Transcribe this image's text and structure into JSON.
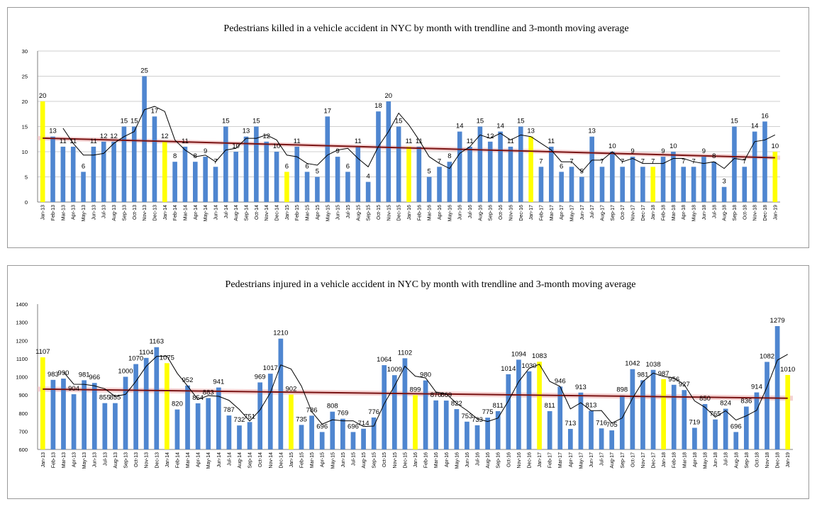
{
  "colors": {
    "bar": "#4f86d0",
    "highlight": "#ffff00",
    "moving_average": "#000000",
    "trendline": "#7a1414",
    "trend_band": "#f2c4c4",
    "grid": "#bfbfbf"
  },
  "chart_data": [
    {
      "type": "bar",
      "title": "Pedestrians killed in a vehicle accident  in NYC  by month with trendline and 3-month moving average",
      "xlabel": "",
      "ylabel": "",
      "ylim": [
        0,
        30
      ],
      "yticks": [
        0,
        5,
        10,
        15,
        20,
        25,
        30
      ],
      "grid": true,
      "legend": "none",
      "categories": [
        "Jan-13",
        "Feb-13",
        "Mar-13",
        "Apr-13",
        "May-13",
        "Jun-13",
        "Jul-13",
        "Aug-13",
        "Sep-13",
        "Oct-13",
        "Nov-13",
        "Dec-13",
        "Jan-14",
        "Feb-14",
        "Mar-14",
        "Apr-14",
        "May-14",
        "Jun-14",
        "Jul-14",
        "Aug-14",
        "Sep-14",
        "Oct-14",
        "Nov-14",
        "Dec-14",
        "Jan-15",
        "Feb-15",
        "Mar-15",
        "Apr-15",
        "May-15",
        "Jun-15",
        "Jul-15",
        "Aug-15",
        "Sep-15",
        "Oct-15",
        "Nov-15",
        "Dec-15",
        "Jan-16",
        "Feb-16",
        "Mar-16",
        "Apr-16",
        "May-16",
        "Jun-16",
        "Jul-16",
        "Aug-16",
        "Sep-16",
        "Oct-16",
        "Nov-16",
        "Dec-16",
        "Jan-17",
        "Feb-17",
        "Mar-17",
        "Apr-17",
        "May-17",
        "Jun-17",
        "Jul-17",
        "Aug-17",
        "Sep-17",
        "Oct-17",
        "Nov-17",
        "Dec-17",
        "Jan-18",
        "Feb-18",
        "Mar-18",
        "Apr-18",
        "May-18",
        "Jun-18",
        "Jul-18",
        "Aug-18",
        "Sep-18",
        "Oct-18",
        "Nov-18",
        "Dec-18",
        "Jan-19"
      ],
      "values": [
        20,
        13,
        11,
        11,
        6,
        11,
        12,
        12,
        15,
        15,
        25,
        17,
        12,
        8,
        11,
        8,
        9,
        7,
        15,
        10,
        13,
        15,
        12,
        10,
        6,
        11,
        6,
        5,
        17,
        9,
        6,
        11,
        4,
        18,
        20,
        15,
        11,
        11,
        5,
        7,
        8,
        14,
        11,
        15,
        12,
        14,
        11,
        15,
        13,
        7,
        11,
        6,
        7,
        5,
        13,
        7,
        10,
        7,
        9,
        7,
        7,
        9,
        10,
        7,
        7,
        9,
        8,
        3,
        15,
        7,
        14,
        16,
        10
      ],
      "labels": [
        "20",
        "13",
        "11",
        "11",
        "6",
        "11",
        "12",
        "12",
        "15",
        "15",
        "25",
        "17",
        "12",
        "8",
        "11",
        "8",
        "9",
        "7",
        "15",
        "10",
        "13",
        "15",
        "12",
        "10",
        "6",
        "11",
        "6",
        "5",
        "17",
        "9",
        "6",
        "11",
        "4",
        "18",
        "20",
        "15",
        "11",
        "11",
        "5",
        "7",
        "8",
        "14",
        "11",
        "15",
        "12",
        "14",
        "11",
        "15",
        "13",
        "7",
        "11",
        "6",
        "7",
        "5",
        "13",
        "7",
        "10",
        "7",
        "9",
        "7",
        "7",
        "9",
        "10",
        "7",
        "7",
        "9",
        "8",
        "3",
        "15",
        "7",
        "14",
        "16",
        "10"
      ],
      "highlight_indices": [
        0,
        12,
        24,
        36,
        48,
        60,
        72
      ],
      "trendline": {
        "start": 12.7,
        "end": 8.8
      },
      "moving_average_3": true
    },
    {
      "type": "bar",
      "title": "Pedestrians injured in a vehicle accident in NYC by month with trendline and 3-month moving average",
      "xlabel": "",
      "ylabel": "",
      "ylim": [
        600,
        1400
      ],
      "yticks": [
        600,
        700,
        800,
        900,
        1000,
        1100,
        1200,
        1300,
        1400
      ],
      "grid": false,
      "legend": "none",
      "categories": [
        "Jan-13",
        "Feb-13",
        "Mar-13",
        "Apr-13",
        "May-13",
        "Jun-13",
        "Jul-13",
        "Aug-13",
        "Sep-13",
        "Oct-13",
        "Nov-13",
        "Dec-13",
        "Jan-14",
        "Feb-14",
        "Mar-14",
        "Apr-14",
        "May-14",
        "Jun-14",
        "Jul-14",
        "Aug-14",
        "Sep-14",
        "Oct-14",
        "Nov-14",
        "Dec-14",
        "Jan-15",
        "Feb-15",
        "Mar-15",
        "Apr-15",
        "May-15",
        "Jun-15",
        "Jul-15",
        "Aug-15",
        "Sep-15",
        "Oct-15",
        "Nov-15",
        "Dec-15",
        "Jan-16",
        "Feb-16",
        "Mar-16",
        "Apr-16",
        "May-16",
        "Jun-16",
        "Jul-16",
        "Aug-16",
        "Sep-16",
        "Oct-16",
        "Nov-16",
        "Dec-16",
        "Jan-17",
        "Feb-17",
        "Mar-17",
        "Apr-17",
        "May-17",
        "Jun-17",
        "Jul-17",
        "Aug-17",
        "Sep-17",
        "Oct-17",
        "Nov-17",
        "Dec-17",
        "Jan-18",
        "Feb-18",
        "Mar-18",
        "Apr-18",
        "May-18",
        "Jun-18",
        "Jul-18",
        "Aug-18",
        "Sep-18",
        "Oct-18",
        "Nov-18",
        "Dec-18",
        "Jan-19"
      ],
      "values": [
        1107,
        983,
        990,
        904,
        981,
        966,
        855,
        855,
        1000,
        1070,
        1104,
        1163,
        1075,
        820,
        952,
        854,
        883,
        941,
        787,
        732,
        751,
        969,
        1017,
        1210,
        902,
        735,
        786,
        696,
        808,
        769,
        696,
        714,
        776,
        1064,
        1009,
        1102,
        899,
        980,
        870,
        869,
        822,
        753,
        733,
        775,
        811,
        1014,
        1094,
        1030,
        1083,
        811,
        946,
        713,
        913,
        813,
        716,
        705,
        898,
        1042,
        981,
        1038,
        987,
        956,
        927,
        719,
        850,
        765,
        824,
        696,
        836,
        914,
        1082,
        1279,
        1010
      ],
      "labels": [
        "1107",
        "983",
        "990",
        "904",
        "981",
        "966",
        "855",
        "855",
        "1000",
        "1070",
        "1104",
        "1163",
        "1075",
        "820",
        "952",
        "854",
        "883",
        "941",
        "787",
        "732",
        "751",
        "969",
        "1017",
        "1210",
        "902",
        "735",
        "786",
        "696",
        "808",
        "769",
        "696",
        "714",
        "776",
        "1064",
        "1009",
        "1102",
        "899",
        "980",
        "870",
        "869",
        "822",
        "753",
        "733",
        "775",
        "811",
        "1014",
        "1094",
        "1030",
        "1083",
        "811",
        "946",
        "713",
        "913",
        "813",
        "716",
        "705",
        "898",
        "1042",
        "981",
        "1038",
        "987",
        "956",
        "927",
        "719",
        "850",
        "765",
        "824",
        "696",
        "836",
        "914",
        "1082",
        "1279",
        "1010"
      ],
      "highlight_indices": [
        0,
        12,
        24,
        36,
        48,
        60,
        72
      ],
      "trendline": {
        "start": 932,
        "end": 882
      },
      "moving_average_3": true
    }
  ]
}
